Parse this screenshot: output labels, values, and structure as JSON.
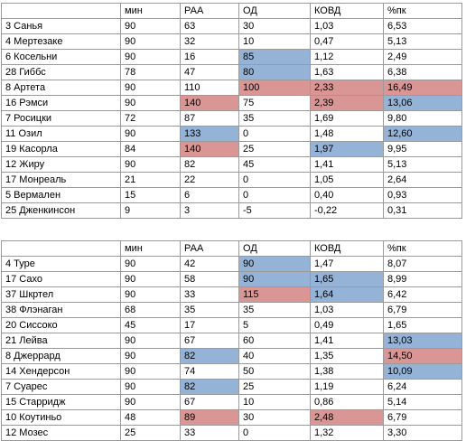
{
  "tables": [
    {
      "headers": [
        "",
        "мин",
        "РАА",
        "ОД",
        "КОВД",
        "%пк"
      ],
      "rows": [
        {
          "cells": [
            "3 Санья",
            "90",
            "63",
            "30",
            "1,03",
            "6,53"
          ],
          "hl": [
            "",
            "",
            "",
            "",
            "",
            ""
          ]
        },
        {
          "cells": [
            "4 Мертезаке",
            "90",
            "32",
            "10",
            "0,47",
            "5,13"
          ],
          "hl": [
            "",
            "",
            "",
            "",
            "",
            ""
          ]
        },
        {
          "cells": [
            "6 Косельни",
            "90",
            "16",
            "85",
            "1,12",
            "2,49"
          ],
          "hl": [
            "",
            "",
            "",
            "blue",
            "",
            ""
          ]
        },
        {
          "cells": [
            "28 Гиббс",
            "78",
            "47",
            "80",
            "1,63",
            "6,38"
          ],
          "hl": [
            "",
            "",
            "",
            "blue",
            "",
            ""
          ]
        },
        {
          "cells": [
            "8 Артета",
            "90",
            "110",
            "100",
            "2,33",
            "16,49"
          ],
          "hl": [
            "",
            "",
            "",
            "red",
            "red",
            "red"
          ]
        },
        {
          "cells": [
            "16 Рэмси",
            "90",
            "140",
            "75",
            "2,39",
            "13,06"
          ],
          "hl": [
            "",
            "",
            "red",
            "",
            "red",
            "blue"
          ]
        },
        {
          "cells": [
            "7 Росицки",
            "72",
            "87",
            "35",
            "1,69",
            "9,80"
          ],
          "hl": [
            "",
            "",
            "",
            "",
            "",
            ""
          ]
        },
        {
          "cells": [
            "11 Озил",
            "90",
            "133",
            "0",
            "1,48",
            "12,60"
          ],
          "hl": [
            "",
            "",
            "blue",
            "",
            "",
            "blue"
          ]
        },
        {
          "cells": [
            "19 Касорла",
            "84",
            "140",
            "25",
            "1,97",
            "9,95"
          ],
          "hl": [
            "",
            "",
            "red",
            "",
            "blue",
            ""
          ]
        },
        {
          "cells": [
            "12 Жиру",
            "90",
            "82",
            "45",
            "1,41",
            "5,13"
          ],
          "hl": [
            "",
            "",
            "",
            "",
            "",
            ""
          ]
        },
        {
          "cells": [
            "17 Монреаль",
            "21",
            "22",
            "0",
            "1,05",
            "2,64"
          ],
          "hl": [
            "",
            "",
            "",
            "",
            "",
            ""
          ]
        },
        {
          "cells": [
            "5 Вермален",
            "15",
            "6",
            "0",
            "0,40",
            "0,93"
          ],
          "hl": [
            "",
            "",
            "",
            "",
            "",
            ""
          ]
        },
        {
          "cells": [
            "25 Дженкинсон",
            "9",
            "3",
            "-5",
            "-0,22",
            "0,31"
          ],
          "hl": [
            "",
            "",
            "",
            "",
            "",
            ""
          ]
        }
      ]
    },
    {
      "headers": [
        "",
        "мин",
        "РАА",
        "ОД",
        "КОВД",
        "%пк"
      ],
      "rows": [
        {
          "cells": [
            "4 Туре",
            "90",
            "42",
            "90",
            "1,47",
            "8,07"
          ],
          "hl": [
            "",
            "",
            "",
            "blue",
            "",
            ""
          ]
        },
        {
          "cells": [
            "17 Сахо",
            "90",
            "58",
            "90",
            "1,65",
            "8,99"
          ],
          "hl": [
            "",
            "",
            "",
            "blue",
            "blue",
            ""
          ]
        },
        {
          "cells": [
            "37 Шкртел",
            "90",
            "33",
            "115",
            "1,64",
            "6,42"
          ],
          "hl": [
            "",
            "",
            "",
            "red",
            "blue",
            ""
          ]
        },
        {
          "cells": [
            "38 Флэнаган",
            "68",
            "35",
            "35",
            "1,03",
            "6,79"
          ],
          "hl": [
            "",
            "",
            "",
            "",
            "",
            ""
          ]
        },
        {
          "cells": [
            "20 Сиссоко",
            "45",
            "17",
            "5",
            "0,49",
            "1,65"
          ],
          "hl": [
            "",
            "",
            "",
            "",
            "",
            ""
          ]
        },
        {
          "cells": [
            "21 Лейва",
            "90",
            "67",
            "60",
            "1,41",
            "13,03"
          ],
          "hl": [
            "",
            "",
            "",
            "",
            "",
            "blue"
          ]
        },
        {
          "cells": [
            "8 Джеррард",
            "90",
            "82",
            "40",
            "1,35",
            "14,50"
          ],
          "hl": [
            "",
            "",
            "blue",
            "",
            "",
            "red"
          ]
        },
        {
          "cells": [
            "14 Хендерсон",
            "90",
            "74",
            "50",
            "1,38",
            "10,09"
          ],
          "hl": [
            "",
            "",
            "",
            "",
            "",
            "blue"
          ]
        },
        {
          "cells": [
            "7 Суарес",
            "90",
            "82",
            "25",
            "1,19",
            "6,24"
          ],
          "hl": [
            "",
            "",
            "blue",
            "",
            "",
            ""
          ]
        },
        {
          "cells": [
            "15 Старридж",
            "90",
            "67",
            "10",
            "0,86",
            "5,14"
          ],
          "hl": [
            "",
            "",
            "",
            "",
            "",
            ""
          ]
        },
        {
          "cells": [
            "10 Коутиньо",
            "48",
            "89",
            "30",
            "2,48",
            "6,79"
          ],
          "hl": [
            "",
            "",
            "red",
            "",
            "red",
            ""
          ]
        },
        {
          "cells": [
            "12 Мозес",
            "25",
            "33",
            "0",
            "1,32",
            "3,30"
          ],
          "hl": [
            "",
            "",
            "",
            "",
            "",
            ""
          ]
        }
      ]
    }
  ]
}
